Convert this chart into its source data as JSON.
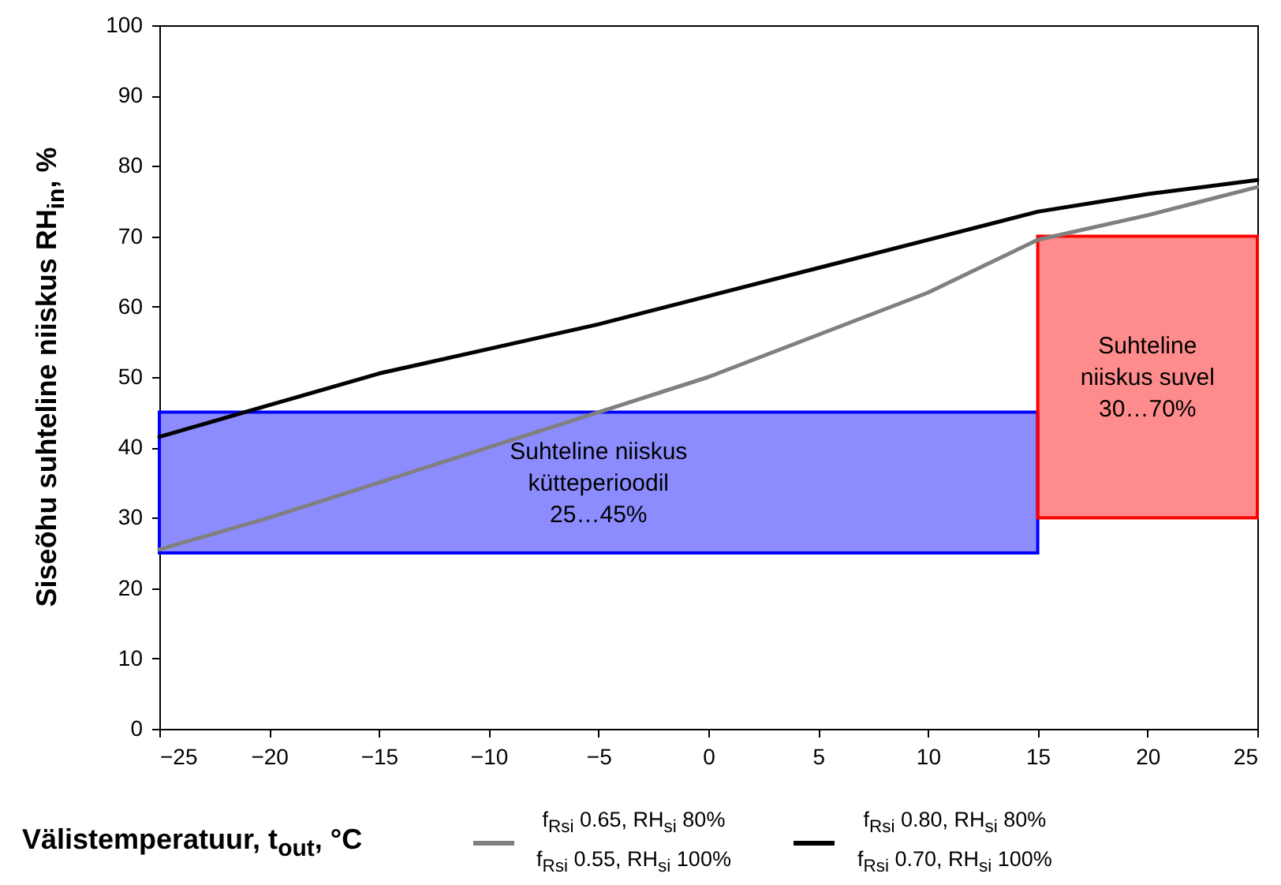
{
  "chart_data": {
    "type": "line",
    "xlabel": "Välistemperatuur, t$_{out}$, °C",
    "ylabel": "Siseõhu suhteline niiskus RH$_{in}$, %",
    "x": [
      -25,
      -20,
      -15,
      -10,
      -5,
      0,
      5,
      10,
      15,
      20,
      25
    ],
    "series": [
      {
        "name": "f$_{Rsi}$ 0.65, RH$_{si}$ 80%\nf$_{Rsi}$ 0.55, RH$_{si}$ 100%",
        "color": "#808080",
        "values": [
          25.5,
          30,
          35,
          40,
          45,
          50,
          56,
          62,
          69.5,
          73,
          77
        ]
      },
      {
        "name": "f$_{Rsi}$ 0.80, RH$_{si}$ 80%\nf$_{Rsi}$ 0.70, RH$_{si}$ 100%",
        "color": "#000000",
        "values": [
          41.5,
          46,
          50.5,
          54,
          57.5,
          61.5,
          65.5,
          69.5,
          73.5,
          76,
          78
        ]
      }
    ],
    "bands": [
      {
        "axis": "y",
        "from": 25,
        "to": 45,
        "label": "Suhteline niiskus\nkütteperioodil\n25…45%",
        "color": "#0000ff"
      },
      {
        "axis": "y",
        "from": 30,
        "to": 70,
        "label": "Suhteline\nniiskus suvel\n30…70%",
        "color": "#ff0000"
      }
    ],
    "xlim": [
      -25,
      25
    ],
    "xticks": [
      -25,
      -20,
      -15,
      -10,
      -5,
      0,
      5,
      10,
      15,
      20,
      25
    ],
    "ylim": [
      0,
      100
    ],
    "yticks": [
      0,
      10,
      20,
      30,
      40,
      50,
      60,
      70,
      80,
      90,
      100
    ],
    "grid": false,
    "legend": "bottom",
    "line_style": "solid",
    "marker": "none"
  }
}
